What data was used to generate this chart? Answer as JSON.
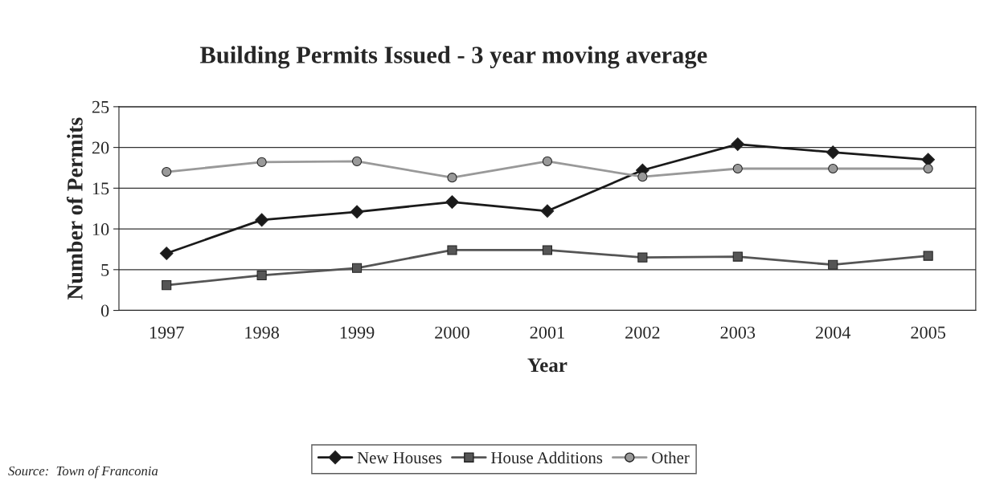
{
  "chart_data": {
    "type": "line",
    "title": "Building Permits Issued - 3 year moving average",
    "xlabel": "Year",
    "ylabel": "Number of Permits",
    "categories": [
      "1997",
      "1998",
      "1999",
      "2000",
      "2001",
      "2002",
      "2003",
      "2004",
      "2005"
    ],
    "series": [
      {
        "name": "New Houses",
        "color": "#1a1a1a",
        "marker": "diamond",
        "values": [
          7.0,
          11.1,
          12.1,
          13.3,
          12.2,
          17.2,
          20.4,
          19.4,
          18.5
        ]
      },
      {
        "name": "House Additions",
        "color": "#555555",
        "marker": "square",
        "values": [
          3.1,
          4.3,
          5.2,
          7.4,
          7.4,
          6.5,
          6.6,
          5.6,
          6.7
        ]
      },
      {
        "name": "Other",
        "color": "#999999",
        "marker": "circle",
        "values": [
          17.0,
          18.2,
          18.3,
          16.3,
          18.3,
          16.4,
          17.4,
          17.4,
          17.4
        ]
      }
    ],
    "ylim": [
      0,
      25
    ],
    "yticks": [
      0,
      5,
      10,
      15,
      20,
      25
    ],
    "grid": "y",
    "legend": "bottom",
    "line_style": "solid",
    "annotations": [
      "Source:  Town of Franconia"
    ]
  }
}
